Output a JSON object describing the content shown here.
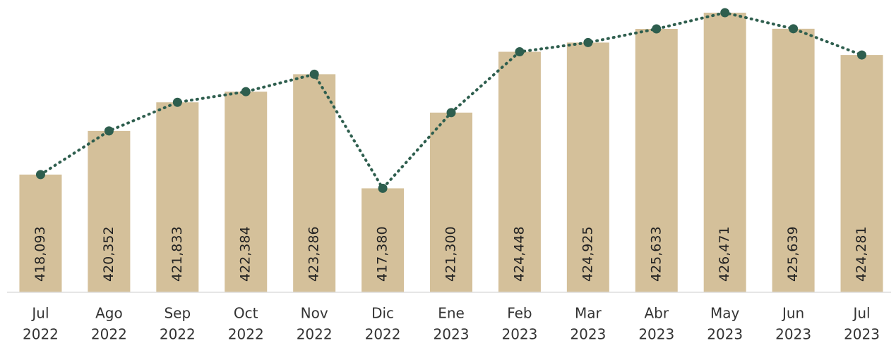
{
  "chart_data": {
    "type": "bar",
    "categories": [
      [
        "Jul",
        "2022"
      ],
      [
        "Ago",
        "2022"
      ],
      [
        "Sep",
        "2022"
      ],
      [
        "Oct",
        "2022"
      ],
      [
        "Nov",
        "2022"
      ],
      [
        "Dic",
        "2022"
      ],
      [
        "Ene",
        "2023"
      ],
      [
        "Feb",
        "2023"
      ],
      [
        "Mar",
        "2023"
      ],
      [
        "Abr",
        "2023"
      ],
      [
        "May",
        "2023"
      ],
      [
        "Jun",
        "2023"
      ],
      [
        "Jul",
        "2023"
      ]
    ],
    "values": [
      418093,
      420352,
      421833,
      422384,
      423286,
      417380,
      421300,
      424448,
      424925,
      425633,
      426471,
      425639,
      424281
    ],
    "value_labels": [
      "418,093",
      "420,352",
      "421,833",
      "422,384",
      "423,286",
      "417,380",
      "421,300",
      "424,448",
      "424,925",
      "425,633",
      "426,471",
      "425,639",
      "424,281"
    ],
    "color": "#d4c09a",
    "line_color": "#2e5e4e",
    "ylim": [
      412000,
      427000
    ]
  }
}
